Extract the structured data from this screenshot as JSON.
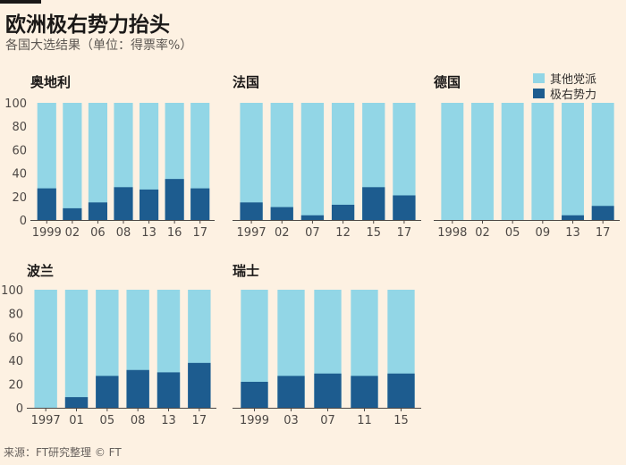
{
  "header": {
    "title": "欧洲极右势力抬头",
    "subtitle": "各国大选结果（单位：得票率%）"
  },
  "footer": {
    "source": "来源：FT研究整理 © FT"
  },
  "colors": {
    "other": "#92d6e6",
    "far_right": "#1d5c8f"
  },
  "legend": {
    "items": [
      {
        "label": "其他党派",
        "color_key": "other"
      },
      {
        "label": "极右势力",
        "color_key": "far_right"
      }
    ]
  },
  "chart_data": [
    {
      "type": "bar",
      "title": "奥地利",
      "categories": [
        "1999",
        "02",
        "06",
        "08",
        "13",
        "16",
        "17"
      ],
      "series": [
        {
          "name": "极右势力",
          "values": [
            27,
            10,
            15,
            28,
            26,
            35,
            27
          ]
        },
        {
          "name": "其他党派",
          "values": [
            73,
            90,
            85,
            72,
            74,
            65,
            73
          ]
        }
      ],
      "ylim": [
        0,
        100
      ],
      "yticks": [
        0,
        20,
        40,
        60,
        80,
        100
      ],
      "xlabel": "",
      "ylabel": ""
    },
    {
      "type": "bar",
      "title": "法国",
      "categories": [
        "1997",
        "02",
        "07",
        "12",
        "15",
        "17"
      ],
      "series": [
        {
          "name": "极右势力",
          "values": [
            15,
            11,
            4,
            13,
            28,
            21
          ]
        },
        {
          "name": "其他党派",
          "values": [
            85,
            89,
            96,
            87,
            72,
            79
          ]
        }
      ],
      "ylim": [
        0,
        100
      ],
      "xlabel": "",
      "ylabel": ""
    },
    {
      "type": "bar",
      "title": "德国",
      "categories": [
        "1998",
        "02",
        "05",
        "09",
        "13",
        "17"
      ],
      "series": [
        {
          "name": "极右势力",
          "values": [
            0,
            0,
            0,
            0,
            4,
            12
          ]
        },
        {
          "name": "其他党派",
          "values": [
            100,
            100,
            100,
            100,
            96,
            88
          ]
        }
      ],
      "ylim": [
        0,
        100
      ],
      "xlabel": "",
      "ylabel": ""
    },
    {
      "type": "bar",
      "title": "波兰",
      "categories": [
        "1997",
        "01",
        "05",
        "08",
        "13",
        "17"
      ],
      "series": [
        {
          "name": "极右势力",
          "values": [
            0,
            9,
            27,
            32,
            30,
            38
          ]
        },
        {
          "name": "其他党派",
          "values": [
            100,
            91,
            73,
            68,
            70,
            62
          ]
        }
      ],
      "ylim": [
        0,
        100
      ],
      "yticks": [
        0,
        20,
        40,
        60,
        80,
        100
      ],
      "xlabel": "",
      "ylabel": ""
    },
    {
      "type": "bar",
      "title": "瑞士",
      "categories": [
        "1999",
        "03",
        "07",
        "11",
        "15"
      ],
      "series": [
        {
          "name": "极右势力",
          "values": [
            22,
            27,
            29,
            27,
            29
          ]
        },
        {
          "name": "其他党派",
          "values": [
            78,
            73,
            71,
            73,
            71
          ]
        }
      ],
      "ylim": [
        0,
        100
      ],
      "xlabel": "",
      "ylabel": ""
    }
  ]
}
